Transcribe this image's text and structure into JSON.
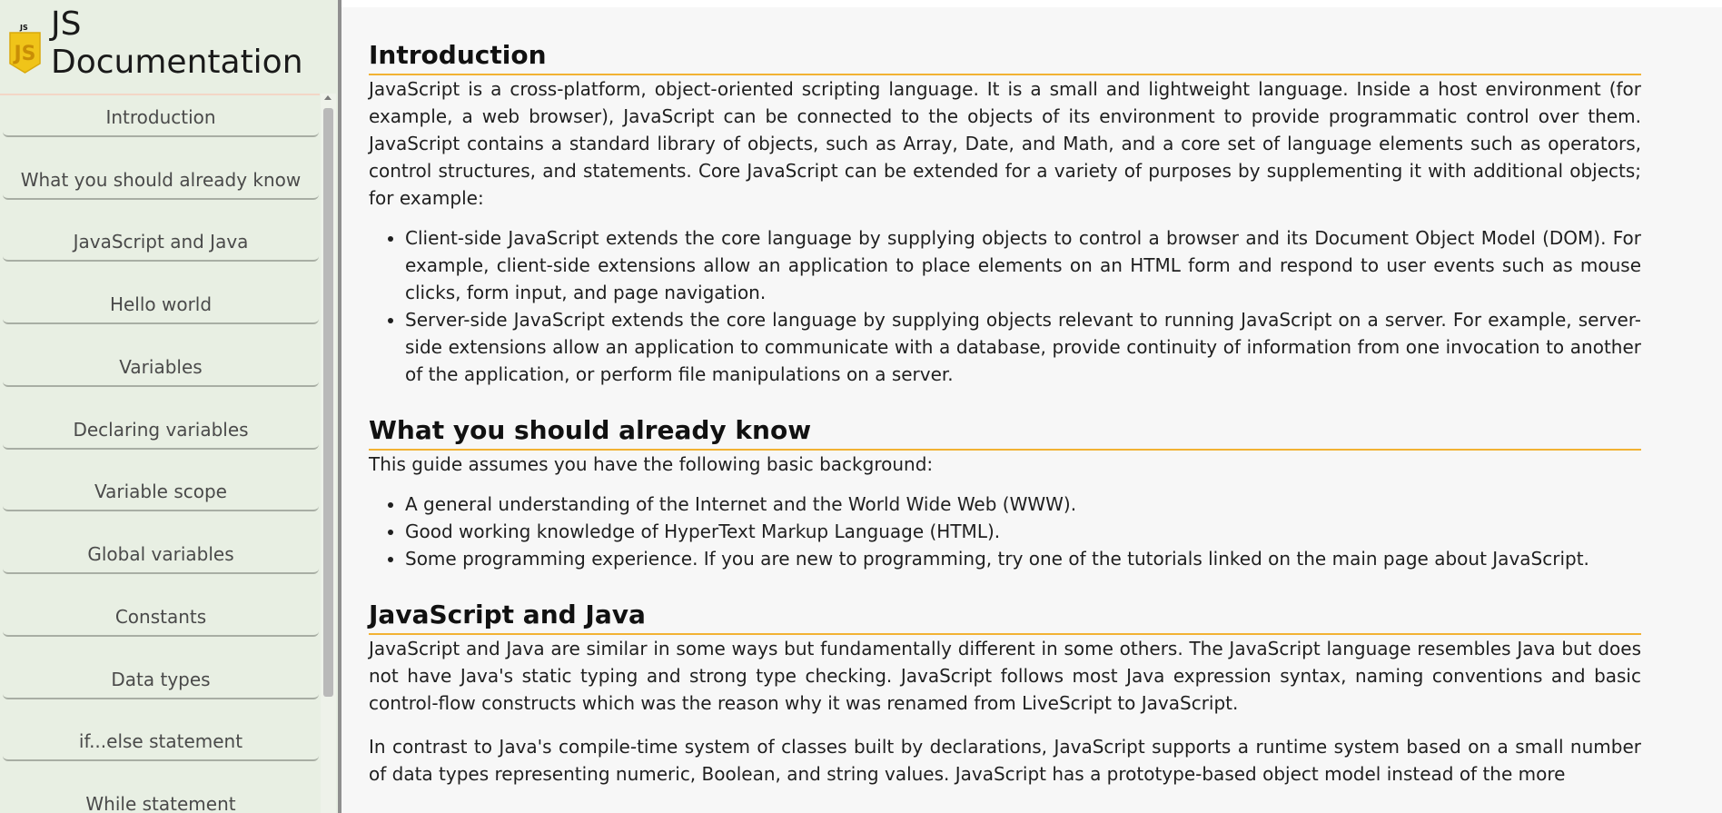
{
  "sidebar": {
    "logo_text": "JS",
    "title_line1": "JS",
    "title_line2": "Documentation",
    "items": [
      {
        "label": "Introduction"
      },
      {
        "label": "What you should already know"
      },
      {
        "label": "JavaScript and Java"
      },
      {
        "label": "Hello world"
      },
      {
        "label": "Variables"
      },
      {
        "label": "Declaring variables"
      },
      {
        "label": "Variable scope"
      },
      {
        "label": "Global variables"
      },
      {
        "label": "Constants"
      },
      {
        "label": "Data types"
      },
      {
        "label": "if...else statement"
      },
      {
        "label": "While statement"
      }
    ]
  },
  "sections": {
    "intro": {
      "title": "Introduction",
      "p1": "JavaScript is a cross-platform, object-oriented scripting language. It is a small and lightweight language. Inside a host environment (for example, a web browser), JavaScript can be connected to the objects of its environment to provide programmatic control over them. JavaScript contains a standard library of objects, such as Array, Date, and Math, and a core set of language elements such as operators, control structures, and statements. Core JavaScript can be extended for a variety of purposes by supplementing it with additional objects; for example:",
      "bullets": [
        "Client-side JavaScript extends the core language by supplying objects to control a browser and its Document Object Model (DOM). For example, client-side extensions allow an application to place elements on an HTML form and respond to user events such as mouse clicks, form input, and page navigation.",
        "Server-side JavaScript extends the core language by supplying objects relevant to running JavaScript on a server. For example, server-side extensions allow an application to communicate with a database, provide continuity of information from one invocation to another of the application, or perform file manipulations on a server."
      ]
    },
    "know": {
      "title": "What you should already know",
      "p1": "This guide assumes you have the following basic background:",
      "bullets": [
        "A general understanding of the Internet and the World Wide Web (WWW).",
        "Good working knowledge of HyperText Markup Language (HTML).",
        "Some programming experience. If you are new to programming, try one of the tutorials linked on the main page about JavaScript."
      ]
    },
    "java": {
      "title": "JavaScript and Java",
      "p1": "JavaScript and Java are similar in some ways but fundamentally different in some others. The JavaScript language resembles Java but does not have Java's static typing and strong type checking. JavaScript follows most Java expression syntax, naming conventions and basic control-flow constructs which was the reason why it was renamed from LiveScript to JavaScript.",
      "p2": "In contrast to Java's compile-time system of classes built by declarations, JavaScript supports a runtime system based on a small number of data types representing numeric, Boolean, and string values. JavaScript has a prototype-based object model instead of the more"
    }
  },
  "colors": {
    "accent": "#f2b233",
    "sidebar_bg": "#e8efe3",
    "logo_yellow": "#f0c419"
  }
}
